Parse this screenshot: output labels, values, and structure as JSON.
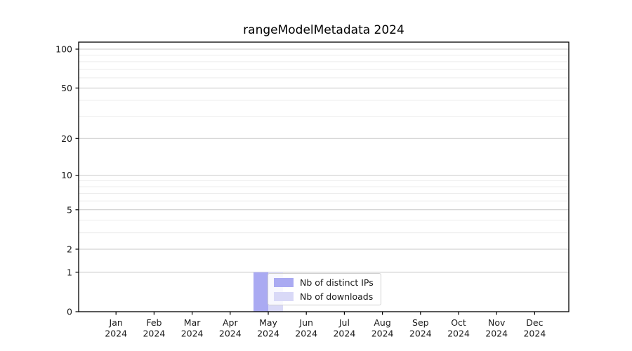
{
  "figure": {
    "title": "rangeModelMetadata 2024",
    "background_color": "#ffffff"
  },
  "chart_data": {
    "type": "bar",
    "title": "rangeModelMetadata 2024",
    "categories": [
      "Jan 2024",
      "Feb 2024",
      "Mar 2024",
      "Apr 2024",
      "May 2024",
      "Jun 2024",
      "Jul 2024",
      "Aug 2024",
      "Sep 2024",
      "Oct 2024",
      "Nov 2024",
      "Dec 2024"
    ],
    "series": [
      {
        "name": "Nb of distinct IPs",
        "color": "#aaaaf2",
        "values": [
          0,
          0,
          0,
          0,
          1,
          0,
          0,
          0,
          0,
          0,
          0,
          0
        ]
      },
      {
        "name": "Nb of downloads",
        "color": "#d9d9f7",
        "values": [
          0,
          0,
          0,
          0,
          1,
          0,
          0,
          0,
          0,
          0,
          0,
          0
        ]
      }
    ],
    "xlabel": "",
    "ylabel": "",
    "y_axis": {
      "scale": "log1p",
      "ticks": [
        0,
        1,
        2,
        5,
        10,
        20,
        50,
        100
      ],
      "minor_gridlines": [
        3,
        4,
        6,
        7,
        8,
        9,
        30,
        40,
        60,
        70,
        80,
        90
      ],
      "ylim": [
        0,
        113
      ]
    },
    "grid": true,
    "legend": {
      "position": "inside lower-center",
      "entries": [
        "Nb of distinct IPs",
        "Nb of downloads"
      ]
    }
  },
  "colors": {
    "grid_major": "#c9c9c9",
    "grid_minor": "#ececec",
    "spine": "#000000",
    "tick_text": "#1a1a1a",
    "legend_border": "#cfcfcf"
  }
}
